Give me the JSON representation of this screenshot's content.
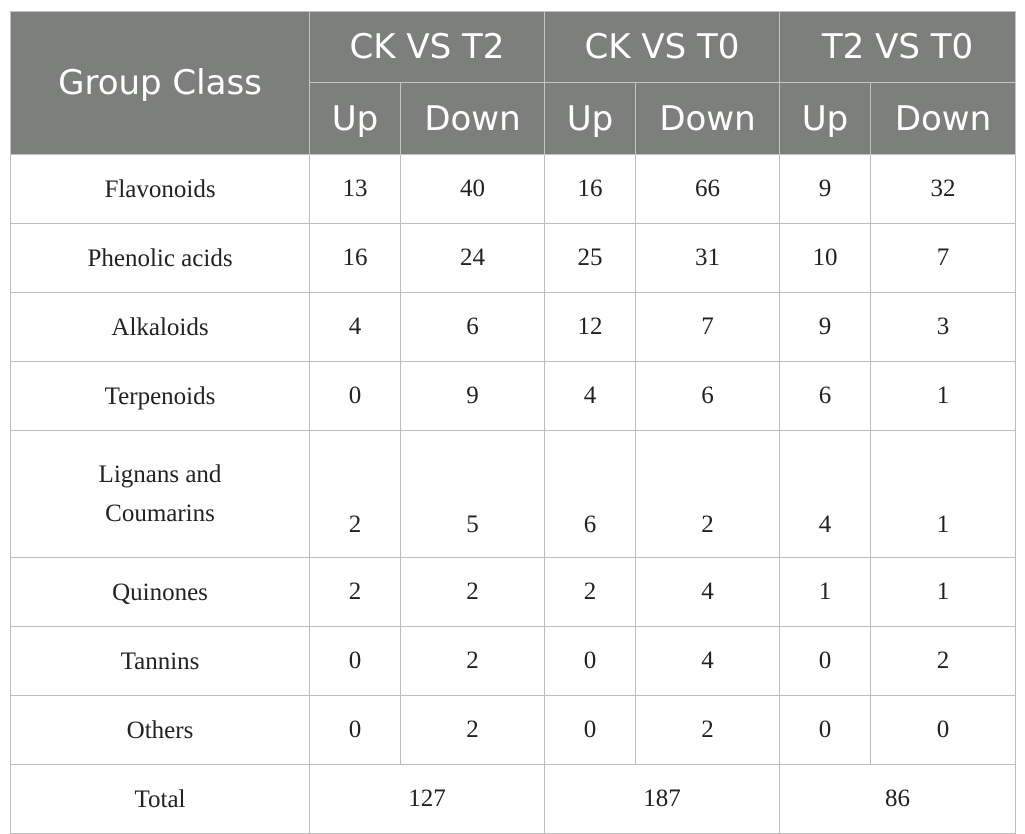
{
  "header": {
    "corner": "Group Class",
    "groups": [
      "CK VS T2",
      "CK VS T0",
      "T2 VS T0"
    ],
    "sub": [
      "Up",
      "Down"
    ]
  },
  "rows": [
    {
      "name": "Flavonoids",
      "values": [
        "13",
        "40",
        "16",
        "66",
        "9",
        "32"
      ]
    },
    {
      "name": "Phenolic acids",
      "values": [
        "16",
        "24",
        "25",
        "31",
        "10",
        "7"
      ]
    },
    {
      "name": "Alkaloids",
      "values": [
        "4",
        "6",
        "12",
        "7",
        "9",
        "3"
      ]
    },
    {
      "name": "Terpenoids",
      "values": [
        "0",
        "9",
        "4",
        "6",
        "6",
        "1"
      ]
    },
    {
      "name_line1": "Lignans and",
      "name_line2": "Coumarins",
      "values": [
        "2",
        "5",
        "6",
        "2",
        "4",
        "1"
      ]
    },
    {
      "name": "Quinones",
      "values": [
        "2",
        "2",
        "2",
        "4",
        "1",
        "1"
      ]
    },
    {
      "name": "Tannins",
      "values": [
        "0",
        "2",
        "0",
        "4",
        "0",
        "2"
      ]
    },
    {
      "name": "Others",
      "values": [
        "0",
        "2",
        "0",
        "2",
        "0",
        "0"
      ]
    }
  ],
  "total": {
    "label": "Total",
    "values": [
      "127",
      "187",
      "86"
    ]
  }
}
